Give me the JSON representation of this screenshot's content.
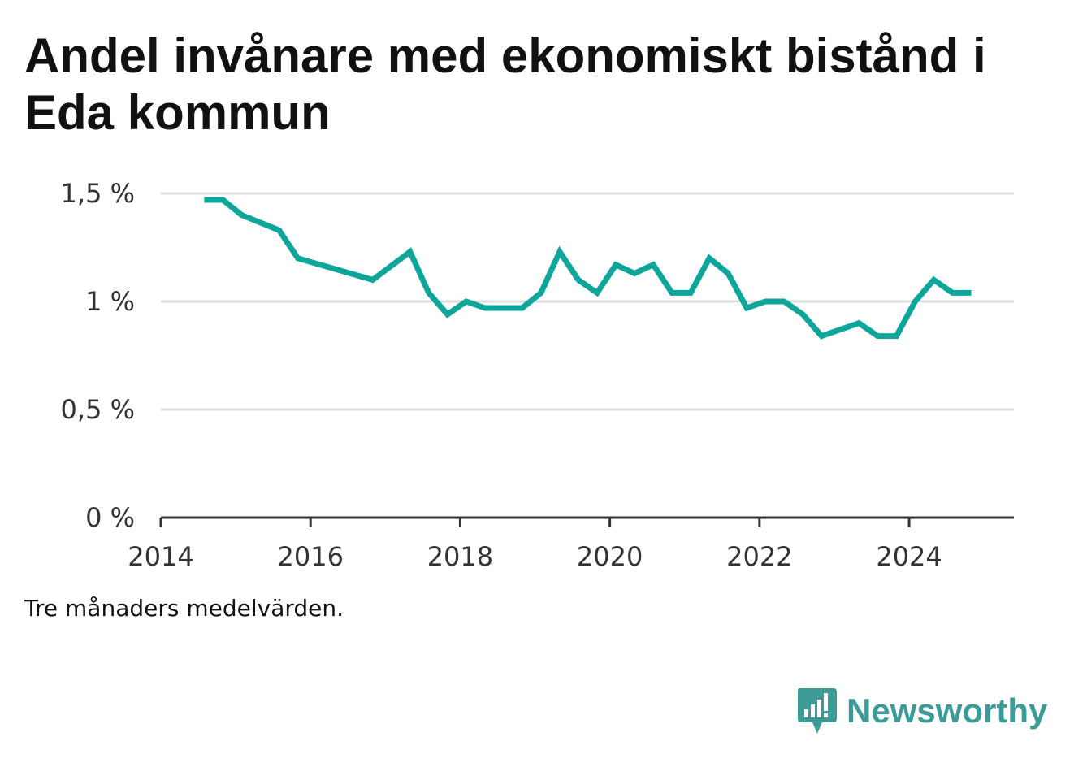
{
  "title": "Andel invånare med ekonomiskt bistånd i Eda kommun",
  "note": "Tre månaders medelvärden.",
  "brand": {
    "name": "Newsworthy",
    "icon": "newsworthy-logo-icon",
    "color": "#3d9b97"
  },
  "colors": {
    "line": "#0ea59a",
    "grid": "#dddddd",
    "axis": "#333333"
  },
  "chart_data": {
    "type": "line",
    "title": "Andel invånare med ekonomiskt bistånd i Eda kommun",
    "xlabel": "",
    "ylabel": "",
    "xlim": [
      2014,
      2025.4
    ],
    "ylim": [
      0,
      1.5
    ],
    "yticks": [
      0,
      0.5,
      1,
      1.5
    ],
    "ytick_labels": [
      "0 %",
      "0,5 %",
      "1 %",
      "1,5 %"
    ],
    "xticks": [
      2014,
      2016,
      2018,
      2020,
      2022,
      2024
    ],
    "xtick_labels": [
      "2014",
      "2016",
      "2018",
      "2020",
      "2022",
      "2024"
    ],
    "grid": true,
    "series": [
      {
        "points": [
          [
            2014.58,
            1.47
          ],
          [
            2014.83,
            1.47
          ],
          [
            2015.08,
            1.4
          ],
          [
            2015.58,
            1.33
          ],
          [
            2015.83,
            1.2
          ],
          [
            2016.83,
            1.1
          ],
          [
            2017.33,
            1.23
          ],
          [
            2017.58,
            1.04
          ],
          [
            2017.83,
            0.94
          ],
          [
            2018.08,
            1.0
          ],
          [
            2018.33,
            0.97
          ],
          [
            2018.83,
            0.97
          ],
          [
            2019.08,
            1.04
          ],
          [
            2019.33,
            1.23
          ],
          [
            2019.58,
            1.1
          ],
          [
            2019.83,
            1.04
          ],
          [
            2020.08,
            1.17
          ],
          [
            2020.33,
            1.13
          ],
          [
            2020.58,
            1.17
          ],
          [
            2020.83,
            1.04
          ],
          [
            2021.08,
            1.04
          ],
          [
            2021.33,
            1.2
          ],
          [
            2021.58,
            1.13
          ],
          [
            2021.83,
            0.97
          ],
          [
            2022.08,
            1.0
          ],
          [
            2022.33,
            1.0
          ],
          [
            2022.58,
            0.94
          ],
          [
            2022.83,
            0.84
          ],
          [
            2023.33,
            0.9
          ],
          [
            2023.58,
            0.84
          ],
          [
            2023.83,
            0.84
          ],
          [
            2024.08,
            1.0
          ],
          [
            2024.33,
            1.1
          ],
          [
            2024.58,
            1.04
          ],
          [
            2024.83,
            1.04
          ]
        ]
      }
    ]
  }
}
